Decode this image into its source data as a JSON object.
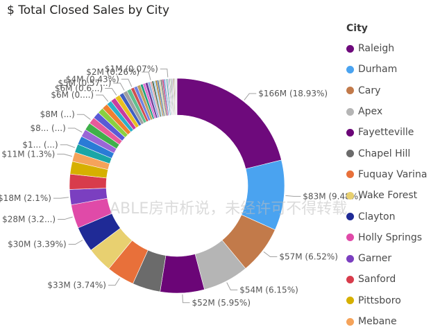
{
  "title": "$ Total Closed Sales by City",
  "watermark": "ABLE房市析说，未经许可不得转载",
  "chart_data": {
    "type": "donut",
    "title": "$ Total Closed Sales by City",
    "legend_title": "City",
    "legend_position": "right",
    "series": [
      {
        "name": "Raleigh",
        "value": 166,
        "label": "$166M (18.93%)",
        "color": "#6e0a7c"
      },
      {
        "name": "Durham",
        "value": 83,
        "label": "$83M (9.48%)",
        "color": "#4aa3f0"
      },
      {
        "name": "Cary",
        "value": 57,
        "label": "$57M (6.52%)",
        "color": "#c27a4a"
      },
      {
        "name": "Apex",
        "value": 54,
        "label": "$54M (6.15%)",
        "color": "#b5b5b5"
      },
      {
        "name": "Fayetteville",
        "value": 52,
        "label": "$52M (5.95%)",
        "color": "#6b0577"
      },
      {
        "name": "Chapel Hill",
        "value": 33,
        "label": "",
        "color": "#6b6b6b"
      },
      {
        "name": "Fuquay Varina",
        "value": 33,
        "label": "$33M (3.74%)",
        "color": "#e8703a"
      },
      {
        "name": "Wake Forest",
        "value": 30,
        "label": "",
        "color": "#e8d070"
      },
      {
        "name": "Clayton",
        "value": 30,
        "label": "$30M (3.39%)",
        "color": "#1f2a96"
      },
      {
        "name": "Holly Springs",
        "value": 28,
        "label": "$28M (3.2...)",
        "color": "#e04aa8"
      },
      {
        "name": "Garner",
        "value": 18,
        "label": "$18M (2.1%)",
        "color": "#7b3fc0"
      },
      {
        "name": "Sanford",
        "value": 18,
        "label": "",
        "color": "#d83c4c"
      },
      {
        "name": "Pittsboro",
        "value": 15,
        "label": "",
        "color": "#d6b000"
      },
      {
        "name": "Mebane",
        "value": 11,
        "label": "$11M (1.3%)",
        "color": "#f5a35a"
      },
      {
        "name": "",
        "value": 10,
        "label": "$1... (...)",
        "color": "#1aa6a6"
      },
      {
        "name": "",
        "value": 10,
        "label": "",
        "color": "#2a7bd6"
      },
      {
        "name": "",
        "value": 9,
        "label": "$8... (...)",
        "color": "#9a66d6"
      },
      {
        "name": "",
        "value": 9,
        "label": "",
        "color": "#3fb04a"
      },
      {
        "name": "",
        "value": 8,
        "label": "$8M (...)",
        "color": "#e85a9a"
      },
      {
        "name": "",
        "value": 8,
        "label": "",
        "color": "#5a5ad6"
      },
      {
        "name": "",
        "value": 7,
        "label": "",
        "color": "#8ad040"
      },
      {
        "name": "",
        "value": 7,
        "label": "",
        "color": "#f08030"
      },
      {
        "name": "",
        "value": 6,
        "label": "$6M (0....)",
        "color": "#2ab0c8"
      },
      {
        "name": "",
        "value": 6,
        "label": "",
        "color": "#c83ca0"
      },
      {
        "name": "",
        "value": 6,
        "label": "$6M (0.6...)",
        "color": "#e8c020"
      },
      {
        "name": "",
        "value": 5,
        "label": "",
        "color": "#4060c0"
      },
      {
        "name": "",
        "value": 5,
        "label": "$5M (0.57...)",
        "color": "#a0a0a0"
      },
      {
        "name": "",
        "value": 5,
        "label": "",
        "color": "#60c090"
      },
      {
        "name": "",
        "value": 4,
        "label": "$4M (0.43%)",
        "color": "#d05050"
      },
      {
        "name": "",
        "value": 4,
        "label": "",
        "color": "#7080e0"
      },
      {
        "name": "",
        "value": 4,
        "label": "",
        "color": "#c0a060"
      },
      {
        "name": "",
        "value": 3,
        "label": "",
        "color": "#20a080"
      },
      {
        "name": "",
        "value": 3,
        "label": "",
        "color": "#e070d0"
      },
      {
        "name": "",
        "value": 3,
        "label": "",
        "color": "#6a3a9a"
      },
      {
        "name": "",
        "value": 3,
        "label": "",
        "color": "#90b0e0"
      },
      {
        "name": "",
        "value": 2,
        "label": "$2M (0.26%)",
        "color": "#e0a0a0"
      },
      {
        "name": "",
        "value": 2,
        "label": "",
        "color": "#406040"
      },
      {
        "name": "",
        "value": 2,
        "label": "",
        "color": "#a0d0f0"
      },
      {
        "name": "",
        "value": 2,
        "label": "",
        "color": "#b08030"
      },
      {
        "name": "",
        "value": 2,
        "label": "",
        "color": "#5070a0"
      },
      {
        "name": "",
        "value": 2,
        "label": "",
        "color": "#d0d0a0"
      },
      {
        "name": "",
        "value": 2,
        "label": "",
        "color": "#7a7a7a"
      },
      {
        "name": "",
        "value": 2,
        "label": "",
        "color": "#c04080"
      },
      {
        "name": "",
        "value": 1.5,
        "label": "",
        "color": "#3a8ad0"
      },
      {
        "name": "",
        "value": 1.5,
        "label": "",
        "color": "#e0c0e0"
      },
      {
        "name": "",
        "value": 1.5,
        "label": "",
        "color": "#50b0b0"
      },
      {
        "name": "",
        "value": 1,
        "label": "$1M (0.07%)",
        "color": "#909090"
      },
      {
        "name": "",
        "value": 1,
        "label": "",
        "color": "#c0c0f0"
      },
      {
        "name": "",
        "value": 1,
        "label": "",
        "color": "#806080"
      },
      {
        "name": "",
        "value": 1,
        "label": "",
        "color": "#b0e0b0"
      },
      {
        "name": "",
        "value": 1,
        "label": "",
        "color": "#606060"
      },
      {
        "name": "",
        "value": 1,
        "label": "",
        "color": "#a0b0c0"
      },
      {
        "name": "",
        "value": 1,
        "label": "",
        "color": "#d0a0b0"
      },
      {
        "name": "",
        "value": 1,
        "label": "",
        "color": "#808040"
      },
      {
        "name": "",
        "value": 1,
        "label": "",
        "color": "#b0b0b0"
      },
      {
        "name": "",
        "value": 1,
        "label": "",
        "color": "#d8d8d8"
      },
      {
        "name": "",
        "value": 1,
        "label": "",
        "color": "#e8e8e8"
      }
    ]
  }
}
